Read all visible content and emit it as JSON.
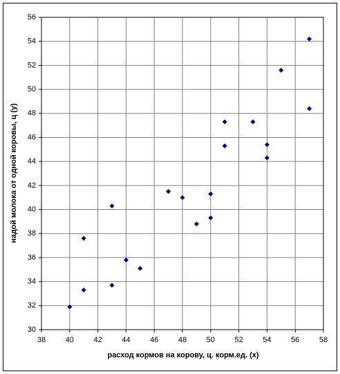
{
  "chart_data": {
    "type": "scatter",
    "x_label": "расход кормов на корову, ц. корм.ед. (x)",
    "y_label": "надой молока от одной коровы, ц (y)",
    "series": [
      {
        "color": "#000080",
        "x": [
          40,
          41,
          41,
          43,
          43,
          44,
          45,
          47,
          48,
          49,
          50,
          50,
          51,
          51,
          53,
          54,
          54,
          55,
          57,
          57
        ],
        "values": [
          31.9,
          33.3,
          37.6,
          33.7,
          40.3,
          35.8,
          35.1,
          41.5,
          41.0,
          38.8,
          41.3,
          39.3,
          47.3,
          45.3,
          47.3,
          45.4,
          44.3,
          51.6,
          54.2,
          48.4
        ]
      }
    ],
    "xlim": [
      38,
      58
    ],
    "xticks": [
      38,
      40,
      42,
      44,
      46,
      48,
      50,
      52,
      54,
      56,
      58
    ],
    "ylim": [
      30,
      56
    ],
    "yticks": [
      30,
      32,
      34,
      36,
      38,
      40,
      42,
      44,
      46,
      48,
      50,
      52,
      54,
      56
    ],
    "grid": true
  }
}
